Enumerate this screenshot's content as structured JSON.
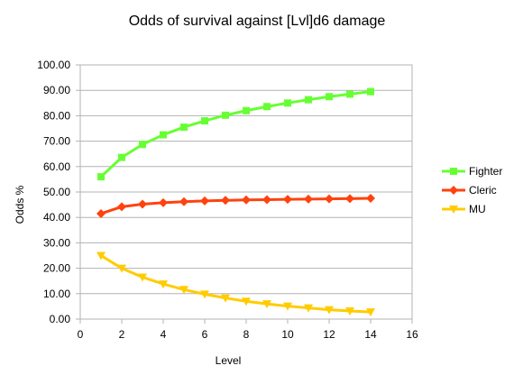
{
  "chart_data": {
    "type": "line",
    "title": "Odds of survival against [Lvl]d6 damage",
    "xlabel": "Level",
    "ylabel": "Odds %",
    "xlim": [
      0,
      16
    ],
    "ylim": [
      0,
      100
    ],
    "x_ticks": [
      0,
      2,
      4,
      6,
      8,
      10,
      12,
      14,
      16
    ],
    "y_ticks": [
      "0.00",
      "10.00",
      "20.00",
      "30.00",
      "40.00",
      "50.00",
      "60.00",
      "70.00",
      "80.00",
      "90.00",
      "100.00"
    ],
    "y_tick_values": [
      0,
      10,
      20,
      30,
      40,
      50,
      60,
      70,
      80,
      90,
      100
    ],
    "grid": "horizontal",
    "legend_position": "right",
    "x": [
      1,
      2,
      3,
      4,
      5,
      6,
      7,
      8,
      9,
      10,
      11,
      12,
      13,
      14
    ],
    "series": [
      {
        "name": "Fighter",
        "color": "#66ff33",
        "marker": "square",
        "values": [
          56.0,
          63.6,
          68.7,
          72.5,
          75.5,
          78.0,
          80.2,
          82.0,
          83.6,
          85.0,
          86.3,
          87.5,
          88.5,
          89.5
        ]
      },
      {
        "name": "Cleric",
        "color": "#ff420e",
        "marker": "diamond",
        "values": [
          41.5,
          44.2,
          45.2,
          45.8,
          46.2,
          46.5,
          46.7,
          46.9,
          47.0,
          47.1,
          47.2,
          47.3,
          47.4,
          47.5
        ]
      },
      {
        "name": "MU",
        "color": "#ffcc00",
        "marker": "triangle-down",
        "values": [
          25.0,
          20.0,
          16.5,
          13.8,
          11.6,
          9.8,
          8.3,
          7.0,
          6.0,
          5.1,
          4.4,
          3.7,
          3.2,
          2.8
        ]
      }
    ]
  }
}
